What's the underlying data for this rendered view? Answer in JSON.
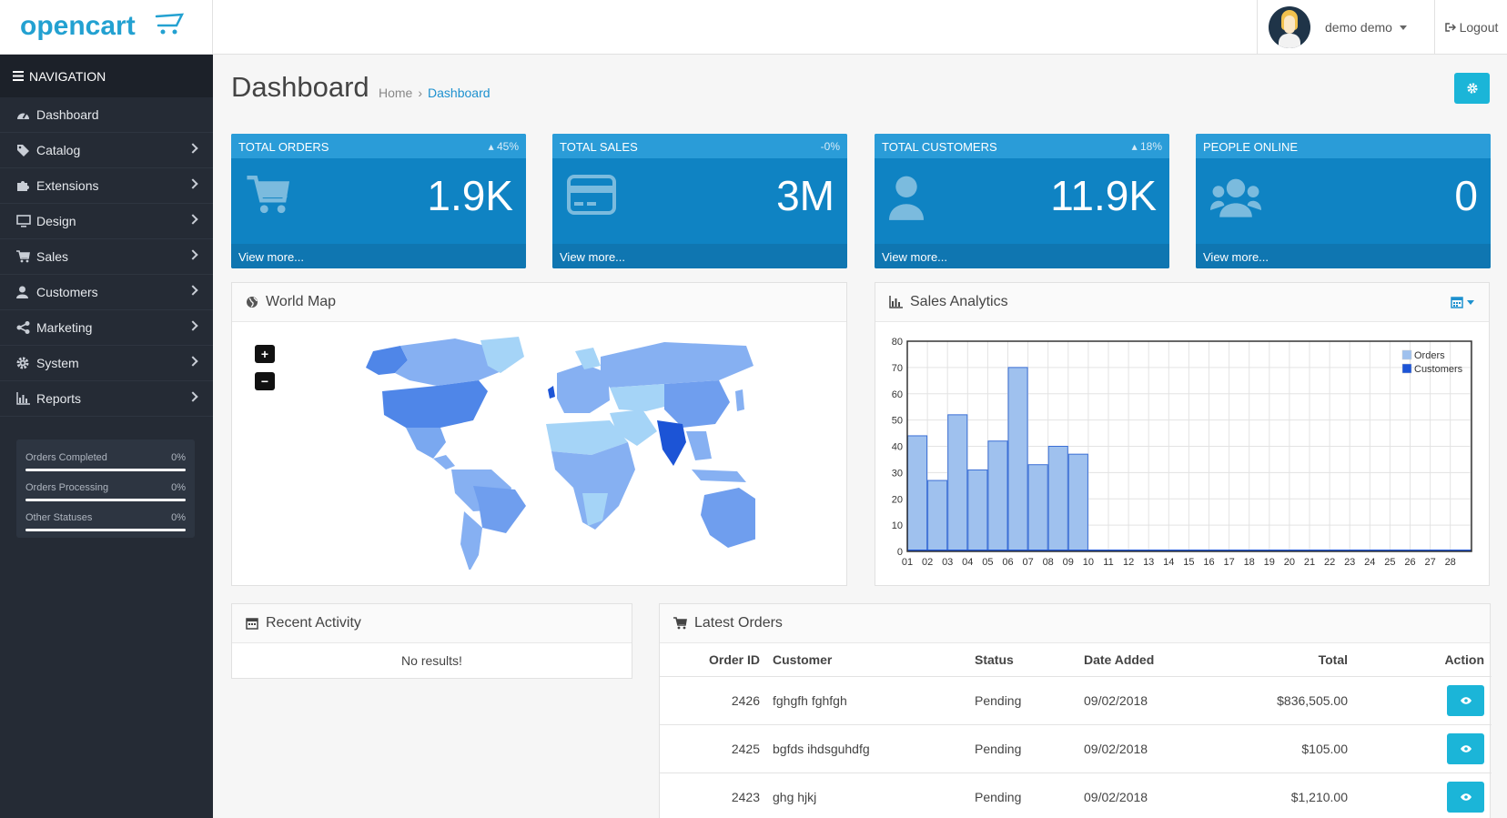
{
  "header": {
    "brand": "opencart",
    "user_name": "demo demo",
    "logout_label": "Logout"
  },
  "sidebar": {
    "title": "NAVIGATION",
    "items": [
      {
        "label": "Dashboard",
        "icon": "dashboard-icon"
      },
      {
        "label": "Catalog",
        "icon": "tag-icon"
      },
      {
        "label": "Extensions",
        "icon": "puzzle-icon"
      },
      {
        "label": "Design",
        "icon": "monitor-icon"
      },
      {
        "label": "Sales",
        "icon": "cart-icon"
      },
      {
        "label": "Customers",
        "icon": "user-icon"
      },
      {
        "label": "Marketing",
        "icon": "share-icon"
      },
      {
        "label": "System",
        "icon": "gear-icon"
      },
      {
        "label": "Reports",
        "icon": "bar-chart-icon"
      }
    ],
    "stats": [
      {
        "label": "Orders Completed",
        "value": "0%"
      },
      {
        "label": "Orders Processing",
        "value": "0%"
      },
      {
        "label": "Other Statuses",
        "value": "0%"
      }
    ]
  },
  "page": {
    "title": "Dashboard",
    "breadcrumb": [
      "Home",
      "Dashboard"
    ]
  },
  "tiles": [
    {
      "title": "TOTAL ORDERS",
      "delta": "45%",
      "value": "1.9K",
      "link": "View more...",
      "icon": "cart-icon"
    },
    {
      "title": "TOTAL SALES",
      "delta": "-0%",
      "value": "3M",
      "link": "View more...",
      "icon": "credit-card-icon"
    },
    {
      "title": "TOTAL CUSTOMERS",
      "delta": "18%",
      "value": "11.9K",
      "link": "View more...",
      "icon": "user-icon"
    },
    {
      "title": "PEOPLE ONLINE",
      "delta": "",
      "value": "0",
      "link": "View more...",
      "icon": "users-icon"
    }
  ],
  "world_map": {
    "title": "World Map",
    "zoom_in": "+",
    "zoom_out": "−"
  },
  "analytics": {
    "title": "Sales Analytics"
  },
  "chart_data": {
    "type": "bar",
    "categories": [
      "01",
      "02",
      "03",
      "04",
      "05",
      "06",
      "07",
      "08",
      "09",
      "10",
      "11",
      "12",
      "13",
      "14",
      "15",
      "16",
      "17",
      "18",
      "19",
      "20",
      "21",
      "22",
      "23",
      "24",
      "25",
      "26",
      "27",
      "28"
    ],
    "series": [
      {
        "name": "Orders",
        "values": [
          44,
          27,
          52,
          31,
          42,
          70,
          33,
          40,
          37,
          0,
          0,
          0,
          0,
          0,
          0,
          0,
          0,
          0,
          0,
          0,
          0,
          0,
          0,
          0,
          0,
          0,
          0,
          0
        ],
        "color": "#9fc1ee"
      },
      {
        "name": "Customers",
        "values": [
          0,
          0,
          0,
          0,
          0,
          0,
          0,
          0,
          0,
          0,
          0,
          0,
          0,
          0,
          0,
          0,
          0,
          0,
          0,
          0,
          0,
          0,
          0,
          0,
          0,
          0,
          0,
          0
        ],
        "color": "#1c54d6"
      }
    ],
    "ylim": [
      0,
      80
    ],
    "yticks": [
      "0",
      "10",
      "20",
      "30",
      "40",
      "50",
      "60",
      "70",
      "80"
    ],
    "grid": true,
    "legend": "top-right"
  },
  "recent_activity": {
    "title": "Recent Activity",
    "empty": "No results!"
  },
  "latest_orders": {
    "title": "Latest Orders",
    "columns": [
      "Order ID",
      "Customer",
      "Status",
      "Date Added",
      "Total",
      "Action"
    ],
    "rows": [
      {
        "id": "2426",
        "customer": "fghgfh fghfgh",
        "status": "Pending",
        "date": "09/02/2018",
        "total": "$836,505.00"
      },
      {
        "id": "2425",
        "customer": "bgfds ihdsguhdfg",
        "status": "Pending",
        "date": "09/02/2018",
        "total": "$105.00"
      },
      {
        "id": "2423",
        "customer": "ghg hjkj",
        "status": "Pending",
        "date": "09/02/2018",
        "total": "$1,210.00"
      }
    ]
  },
  "colors": {
    "accent": "#1e91cf",
    "button": "#1bb5d8",
    "sidebar": "#252b35"
  }
}
